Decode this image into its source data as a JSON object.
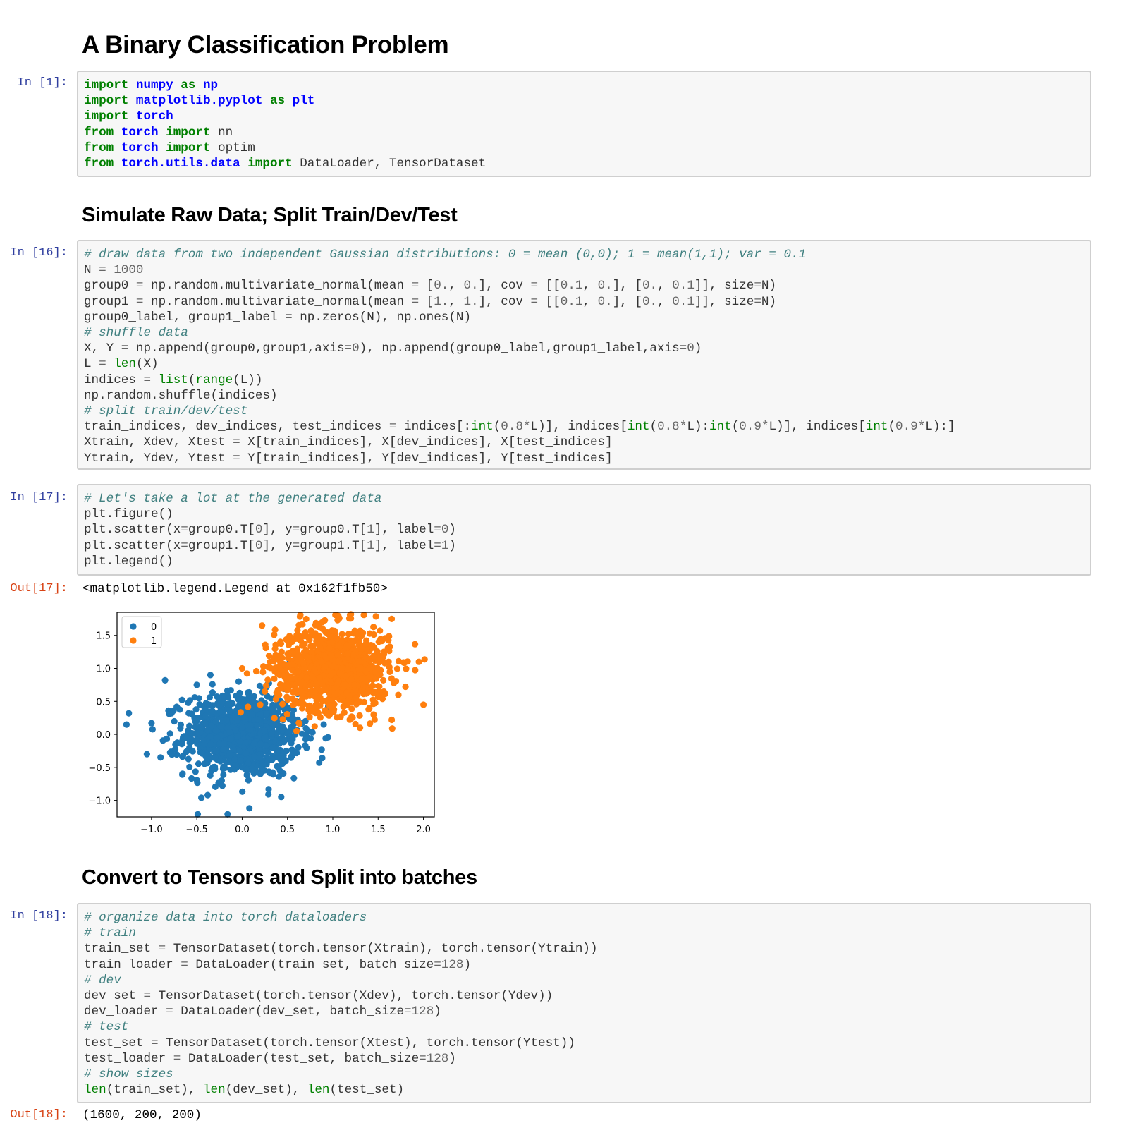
{
  "headings": {
    "h1": "A Binary Classification Problem",
    "h2": "Simulate Raw Data; Split Train/Dev/Test",
    "h3": "Convert to Tensors and Split into batches"
  },
  "prompts": {
    "in1": "In [1]:",
    "in16": "In [16]:",
    "in17": "In [17]:",
    "out17": "Out[17]:",
    "in18": "In [18]:",
    "out18": "Out[18]:"
  },
  "cells": {
    "c1": [
      [
        [
          "kw",
          "import"
        ],
        [
          "t",
          " "
        ],
        [
          "mod",
          "numpy"
        ],
        [
          "t",
          " "
        ],
        [
          "kw",
          "as"
        ],
        [
          "t",
          " "
        ],
        [
          "mod",
          "np"
        ]
      ],
      [
        [
          "kw",
          "import"
        ],
        [
          "t",
          " "
        ],
        [
          "mod",
          "matplotlib.pyplot"
        ],
        [
          "t",
          " "
        ],
        [
          "kw",
          "as"
        ],
        [
          "t",
          " "
        ],
        [
          "mod",
          "plt"
        ]
      ],
      [
        [
          "kw",
          "import"
        ],
        [
          "t",
          " "
        ],
        [
          "mod",
          "torch"
        ]
      ],
      [
        [
          "kw",
          "from"
        ],
        [
          "t",
          " "
        ],
        [
          "mod",
          "torch"
        ],
        [
          "t",
          " "
        ],
        [
          "kw",
          "import"
        ],
        [
          "t",
          " nn"
        ]
      ],
      [
        [
          "kw",
          "from"
        ],
        [
          "t",
          " "
        ],
        [
          "mod",
          "torch"
        ],
        [
          "t",
          " "
        ],
        [
          "kw",
          "import"
        ],
        [
          "t",
          " optim"
        ]
      ],
      [
        [
          "kw",
          "from"
        ],
        [
          "t",
          " "
        ],
        [
          "mod",
          "torch.utils.data"
        ],
        [
          "t",
          " "
        ],
        [
          "kw",
          "import"
        ],
        [
          "t",
          " DataLoader, TensorDataset"
        ]
      ]
    ],
    "c16": [
      [
        [
          "com",
          "# draw data from two independent Gaussian distributions: 0 = mean (0,0); 1 = mean(1,1); var = 0.1"
        ]
      ],
      [
        [
          "t",
          "N "
        ],
        [
          "op",
          "="
        ],
        [
          "t",
          " "
        ],
        [
          "num",
          "1000"
        ]
      ],
      [
        [
          "t",
          "group0 "
        ],
        [
          "op",
          "="
        ],
        [
          "t",
          " np.random.multivariate_normal(mean "
        ],
        [
          "op",
          "="
        ],
        [
          "t",
          " ["
        ],
        [
          "num",
          "0."
        ],
        [
          "t",
          ", "
        ],
        [
          "num",
          "0."
        ],
        [
          "t",
          "], cov "
        ],
        [
          "op",
          "="
        ],
        [
          "t",
          " [["
        ],
        [
          "num",
          "0.1"
        ],
        [
          "t",
          ", "
        ],
        [
          "num",
          "0."
        ],
        [
          "t",
          "], ["
        ],
        [
          "num",
          "0."
        ],
        [
          "t",
          ", "
        ],
        [
          "num",
          "0.1"
        ],
        [
          "t",
          "]], size"
        ],
        [
          "op",
          "="
        ],
        [
          "t",
          "N)"
        ]
      ],
      [
        [
          "t",
          "group1 "
        ],
        [
          "op",
          "="
        ],
        [
          "t",
          " np.random.multivariate_normal(mean "
        ],
        [
          "op",
          "="
        ],
        [
          "t",
          " ["
        ],
        [
          "num",
          "1."
        ],
        [
          "t",
          ", "
        ],
        [
          "num",
          "1."
        ],
        [
          "t",
          "], cov "
        ],
        [
          "op",
          "="
        ],
        [
          "t",
          " [["
        ],
        [
          "num",
          "0.1"
        ],
        [
          "t",
          ", "
        ],
        [
          "num",
          "0."
        ],
        [
          "t",
          "], ["
        ],
        [
          "num",
          "0."
        ],
        [
          "t",
          ", "
        ],
        [
          "num",
          "0.1"
        ],
        [
          "t",
          "]], size"
        ],
        [
          "op",
          "="
        ],
        [
          "t",
          "N)"
        ]
      ],
      [
        [
          "t",
          "group0_label, group1_label "
        ],
        [
          "op",
          "="
        ],
        [
          "t",
          " np.zeros(N), np.ones(N)"
        ]
      ],
      [
        [
          "com",
          "# shuffle data"
        ]
      ],
      [
        [
          "t",
          "X, Y "
        ],
        [
          "op",
          "="
        ],
        [
          "t",
          " np.append(group0,group1,axis"
        ],
        [
          "op",
          "="
        ],
        [
          "num",
          "0"
        ],
        [
          "t",
          "), np.append(group0_label,group1_label,axis"
        ],
        [
          "op",
          "="
        ],
        [
          "num",
          "0"
        ],
        [
          "t",
          ")"
        ]
      ],
      [
        [
          "t",
          "L "
        ],
        [
          "op",
          "="
        ],
        [
          "t",
          " "
        ],
        [
          "bi",
          "len"
        ],
        [
          "t",
          "(X)"
        ]
      ],
      [
        [
          "t",
          "indices "
        ],
        [
          "op",
          "="
        ],
        [
          "t",
          " "
        ],
        [
          "bi",
          "list"
        ],
        [
          "t",
          "("
        ],
        [
          "bi",
          "range"
        ],
        [
          "t",
          "(L))"
        ]
      ],
      [
        [
          "t",
          "np.random.shuffle(indices)"
        ]
      ],
      [
        [
          "com",
          "# split train/dev/test"
        ]
      ],
      [
        [
          "t",
          "train_indices, dev_indices, test_indices "
        ],
        [
          "op",
          "="
        ],
        [
          "t",
          " indices[:"
        ],
        [
          "bi",
          "int"
        ],
        [
          "t",
          "("
        ],
        [
          "num",
          "0.8"
        ],
        [
          "op",
          "*"
        ],
        [
          "t",
          "L)], indices["
        ],
        [
          "bi",
          "int"
        ],
        [
          "t",
          "("
        ],
        [
          "num",
          "0.8"
        ],
        [
          "op",
          "*"
        ],
        [
          "t",
          "L):"
        ],
        [
          "bi",
          "int"
        ],
        [
          "t",
          "("
        ],
        [
          "num",
          "0.9"
        ],
        [
          "op",
          "*"
        ],
        [
          "t",
          "L)], indices["
        ],
        [
          "bi",
          "int"
        ],
        [
          "t",
          "("
        ],
        [
          "num",
          "0.9"
        ],
        [
          "op",
          "*"
        ],
        [
          "t",
          "L):]"
        ]
      ],
      [
        [
          "t",
          "Xtrain, Xdev, Xtest "
        ],
        [
          "op",
          "="
        ],
        [
          "t",
          " X[train_indices], X[dev_indices], X[test_indices]"
        ]
      ],
      [
        [
          "t",
          "Ytrain, Ydev, Ytest "
        ],
        [
          "op",
          "="
        ],
        [
          "t",
          " Y[train_indices], Y[dev_indices], Y[test_indices]"
        ]
      ]
    ],
    "c17": [
      [
        [
          "com",
          "# Let's take a lot at the generated data"
        ]
      ],
      [
        [
          "t",
          "plt.figure()"
        ]
      ],
      [
        [
          "t",
          "plt.scatter(x"
        ],
        [
          "op",
          "="
        ],
        [
          "t",
          "group0.T["
        ],
        [
          "num",
          "0"
        ],
        [
          "t",
          "], y"
        ],
        [
          "op",
          "="
        ],
        [
          "t",
          "group0.T["
        ],
        [
          "num",
          "1"
        ],
        [
          "t",
          "], label"
        ],
        [
          "op",
          "="
        ],
        [
          "num",
          "0"
        ],
        [
          "t",
          ")"
        ]
      ],
      [
        [
          "t",
          "plt.scatter(x"
        ],
        [
          "op",
          "="
        ],
        [
          "t",
          "group1.T["
        ],
        [
          "num",
          "0"
        ],
        [
          "t",
          "], y"
        ],
        [
          "op",
          "="
        ],
        [
          "t",
          "group1.T["
        ],
        [
          "num",
          "1"
        ],
        [
          "t",
          "], label"
        ],
        [
          "op",
          "="
        ],
        [
          "num",
          "1"
        ],
        [
          "t",
          ")"
        ]
      ],
      [
        [
          "t",
          "plt.legend()"
        ]
      ]
    ],
    "c18": [
      [
        [
          "com",
          "# organize data into torch dataloaders"
        ]
      ],
      [
        [
          "com",
          "# train"
        ]
      ],
      [
        [
          "t",
          "train_set "
        ],
        [
          "op",
          "="
        ],
        [
          "t",
          " TensorDataset(torch.tensor(Xtrain), torch.tensor(Ytrain))"
        ]
      ],
      [
        [
          "t",
          "train_loader "
        ],
        [
          "op",
          "="
        ],
        [
          "t",
          " DataLoader(train_set, batch_size"
        ],
        [
          "op",
          "="
        ],
        [
          "num",
          "128"
        ],
        [
          "t",
          ")"
        ]
      ],
      [
        [
          "com",
          "# dev"
        ]
      ],
      [
        [
          "t",
          "dev_set "
        ],
        [
          "op",
          "="
        ],
        [
          "t",
          " TensorDataset(torch.tensor(Xdev), torch.tensor(Ydev))"
        ]
      ],
      [
        [
          "t",
          "dev_loader "
        ],
        [
          "op",
          "="
        ],
        [
          "t",
          " DataLoader(dev_set, batch_size"
        ],
        [
          "op",
          "="
        ],
        [
          "num",
          "128"
        ],
        [
          "t",
          ")"
        ]
      ],
      [
        [
          "com",
          "# test"
        ]
      ],
      [
        [
          "t",
          "test_set "
        ],
        [
          "op",
          "="
        ],
        [
          "t",
          " TensorDataset(torch.tensor(Xtest), torch.tensor(Ytest))"
        ]
      ],
      [
        [
          "t",
          "test_loader "
        ],
        [
          "op",
          "="
        ],
        [
          "t",
          " DataLoader(test_set, batch_size"
        ],
        [
          "op",
          "="
        ],
        [
          "num",
          "128"
        ],
        [
          "t",
          ")"
        ]
      ],
      [
        [
          "com",
          "# show sizes"
        ]
      ],
      [
        [
          "bi",
          "len"
        ],
        [
          "t",
          "(train_set), "
        ],
        [
          "bi",
          "len"
        ],
        [
          "t",
          "(dev_set), "
        ],
        [
          "bi",
          "len"
        ],
        [
          "t",
          "(test_set)"
        ]
      ]
    ]
  },
  "outputs": {
    "out17": "<matplotlib.legend.Legend at 0x162f1fb50>",
    "out18": "(1600, 200, 200)"
  },
  "chart_data": {
    "type": "scatter",
    "title": "",
    "xlabel": "",
    "ylabel": "",
    "xlim": [
      -1.38,
      2.12
    ],
    "ylim": [
      -1.25,
      1.85
    ],
    "xticks": [
      "-1.0",
      "-0.5",
      "0.0",
      "0.5",
      "1.0",
      "1.5",
      "2.0"
    ],
    "xtick_values": [
      -1.0,
      -0.5,
      0.0,
      0.5,
      1.0,
      1.5,
      2.0
    ],
    "yticks": [
      "-1.0",
      "-0.5",
      "0.0",
      "0.5",
      "1.0",
      "1.5"
    ],
    "ytick_values": [
      -1.0,
      -0.5,
      0.0,
      0.5,
      1.0,
      1.5
    ],
    "grid": false,
    "legend_position": "top-left",
    "series": [
      {
        "name": "0",
        "color": "#1f77b4",
        "count": 1000,
        "mean": [
          0,
          0
        ],
        "std": 0.316,
        "sample_points": [
          [
            -1.25,
            0.32
          ],
          [
            -1.0,
            0.17
          ],
          [
            -0.85,
            0.82
          ],
          [
            -1.05,
            -0.3
          ],
          [
            -0.9,
            -0.35
          ],
          [
            0.08,
            -1.12
          ],
          [
            -0.38,
            -0.92
          ],
          [
            -0.45,
            -0.96
          ],
          [
            0.85,
            -0.43
          ],
          [
            0.9,
            0.15
          ],
          [
            -0.35,
            0.9
          ],
          [
            -0.5,
            0.75
          ]
        ]
      },
      {
        "name": "1",
        "color": "#ff7f0e",
        "count": 1000,
        "mean": [
          1,
          1
        ],
        "std": 0.316,
        "sample_points": [
          [
            1.2,
            1.82
          ],
          [
            0.22,
            1.65
          ],
          [
            2.0,
            0.45
          ],
          [
            1.95,
            1.1
          ],
          [
            0.0,
            1.0
          ],
          [
            0.25,
            0.65
          ],
          [
            1.65,
            0.22
          ],
          [
            1.45,
            0.3
          ],
          [
            1.3,
            0.1
          ],
          [
            0.8,
            0.12
          ],
          [
            0.6,
            0.05
          ],
          [
            1.65,
            1.75
          ],
          [
            0.2,
            0.45
          ]
        ]
      }
    ]
  }
}
